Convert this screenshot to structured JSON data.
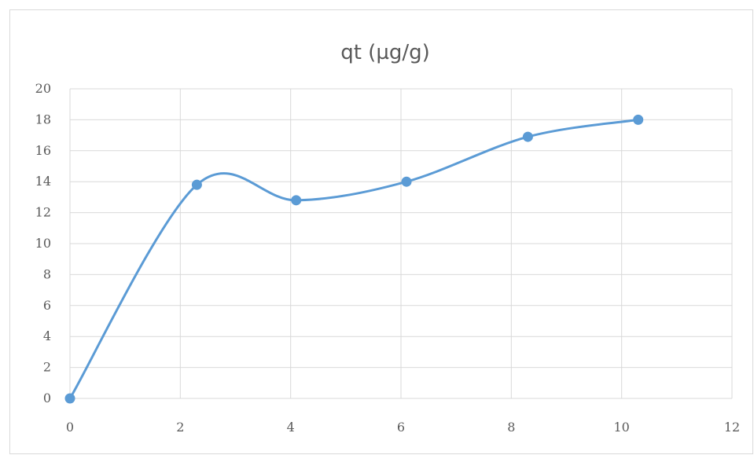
{
  "chart_data": {
    "type": "scatter",
    "title": "qt (µg/g)",
    "xlabel": "",
    "ylabel": "",
    "x": [
      0,
      2.3,
      4.1,
      6.1,
      8.3,
      10.3
    ],
    "series": [
      {
        "values": [
          0,
          13.8,
          12.8,
          14.0,
          16.9,
          18.0
        ]
      }
    ],
    "xlim": [
      0,
      12
    ],
    "ylim": [
      0,
      20
    ],
    "x_ticks": [
      "0",
      "2",
      "4",
      "6",
      "8",
      "10",
      "12"
    ],
    "y_ticks": [
      "0",
      "2",
      "4",
      "6",
      "8",
      "10",
      "12",
      "14",
      "16",
      "18",
      "20"
    ],
    "smooth_line": true,
    "grid": true,
    "legend": "none",
    "colors": {
      "series": "#5b9bd5",
      "grid": "#d9d9d9",
      "text": "#595959"
    }
  }
}
